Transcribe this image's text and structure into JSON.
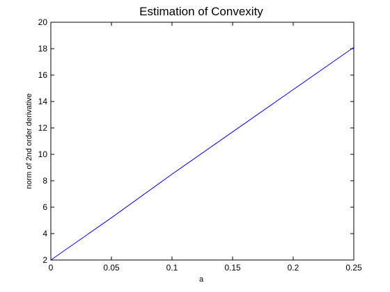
{
  "chart_data": {
    "type": "line",
    "title": "Estimation of Convexity",
    "xlabel": "a",
    "ylabel": "norm of 2nd order derivative",
    "xlim": [
      0,
      0.25
    ],
    "ylim": [
      2,
      20
    ],
    "xticks": [
      0,
      0.05,
      0.1,
      0.15,
      0.2,
      0.25
    ],
    "xtick_labels": [
      "0",
      "0.05",
      "0.1",
      "0.15",
      "0.2",
      "0.25"
    ],
    "yticks": [
      2,
      4,
      6,
      8,
      10,
      12,
      14,
      16,
      18,
      20
    ],
    "ytick_labels": [
      "2",
      "4",
      "6",
      "8",
      "10",
      "12",
      "14",
      "16",
      "18",
      "20"
    ],
    "grid": false,
    "legend": "none",
    "series": [
      {
        "color": "#0000ff",
        "x": [
          0,
          0.05,
          0.1,
          0.15,
          0.2,
          0.25
        ],
        "y": [
          2.0,
          5.2,
          8.5,
          11.7,
          14.9,
          18.1
        ]
      }
    ]
  }
}
